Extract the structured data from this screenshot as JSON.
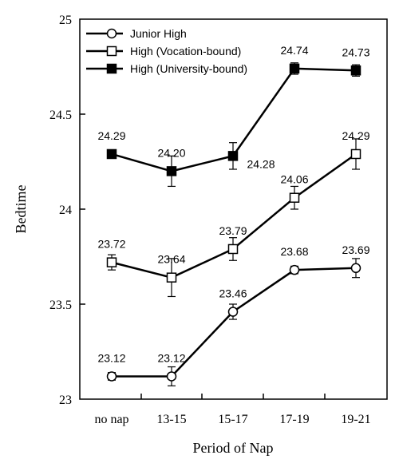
{
  "chart_data": {
    "type": "line",
    "xlabel": "Period of Nap",
    "ylabel": "Bedtime",
    "categories": [
      "no nap",
      "13-15",
      "15-17",
      "17-19",
      "19-21"
    ],
    "ylim": [
      23,
      25
    ],
    "yticks": [
      23,
      23.5,
      24,
      24.5,
      25
    ],
    "ytick_labels": [
      "23",
      "23.5",
      "24",
      "24.5",
      "25"
    ],
    "grid": false,
    "legend_position": "top-left",
    "series": [
      {
        "name": "Junior High",
        "marker": "open-circle",
        "values": [
          23.12,
          23.12,
          23.46,
          23.68,
          23.69
        ],
        "errors": [
          0.02,
          0.05,
          0.04,
          0.02,
          0.05
        ],
        "labels": [
          "23.12",
          "23.12",
          "23.46",
          "23.68",
          "23.69"
        ]
      },
      {
        "name": "High (Vocation-bound)",
        "marker": "open-square",
        "values": [
          23.72,
          23.64,
          23.79,
          24.06,
          24.29
        ],
        "errors": [
          0.04,
          0.1,
          0.06,
          0.06,
          0.08
        ],
        "labels": [
          "23.72",
          "23.64",
          "23.79",
          "24.06",
          "24.29"
        ]
      },
      {
        "name": "High (University-bound)",
        "marker": "filled-square",
        "values": [
          24.29,
          24.2,
          24.28,
          24.74,
          24.73
        ],
        "errors": [
          0.02,
          0.08,
          0.07,
          0.03,
          0.03
        ],
        "labels": [
          "24.29",
          "24.20",
          "24.28",
          "24.74",
          "24.73"
        ]
      }
    ]
  }
}
